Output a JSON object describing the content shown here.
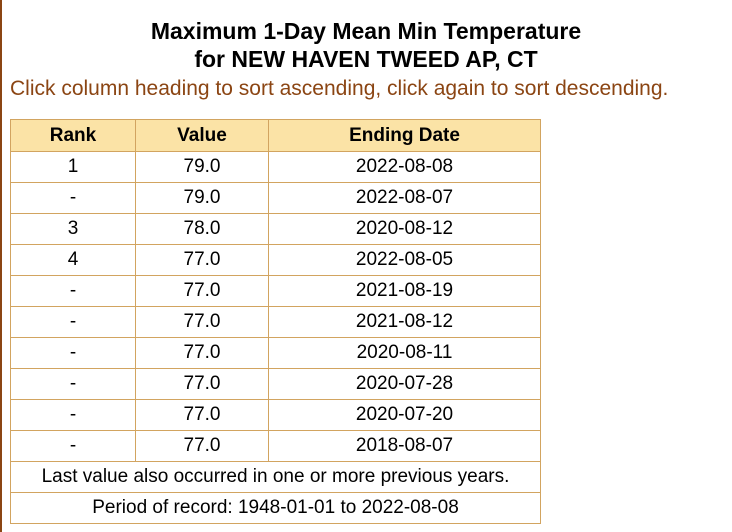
{
  "header": {
    "title_lines": [
      "Maximum 1-Day Mean Min Temperature",
      "for NEW HAVEN TWEED AP, CT"
    ],
    "instruction": "Click column heading to sort ascending, click again to sort descending."
  },
  "table": {
    "columns": [
      "Rank",
      "Value",
      "Ending Date"
    ],
    "rows": [
      [
        "1",
        "79.0",
        "2022-08-08"
      ],
      [
        "-",
        "79.0",
        "2022-08-07"
      ],
      [
        "3",
        "78.0",
        "2020-08-12"
      ],
      [
        "4",
        "77.0",
        "2022-08-05"
      ],
      [
        "-",
        "77.0",
        "2021-08-19"
      ],
      [
        "-",
        "77.0",
        "2021-08-12"
      ],
      [
        "-",
        "77.0",
        "2020-08-11"
      ],
      [
        "-",
        "77.0",
        "2020-07-28"
      ],
      [
        "-",
        "77.0",
        "2020-07-20"
      ],
      [
        "-",
        "77.0",
        "2018-08-07"
      ]
    ],
    "notes": [
      "Last value also occurred in one or more previous years.",
      "Period of record: 1948-01-01 to 2022-08-08"
    ]
  }
}
